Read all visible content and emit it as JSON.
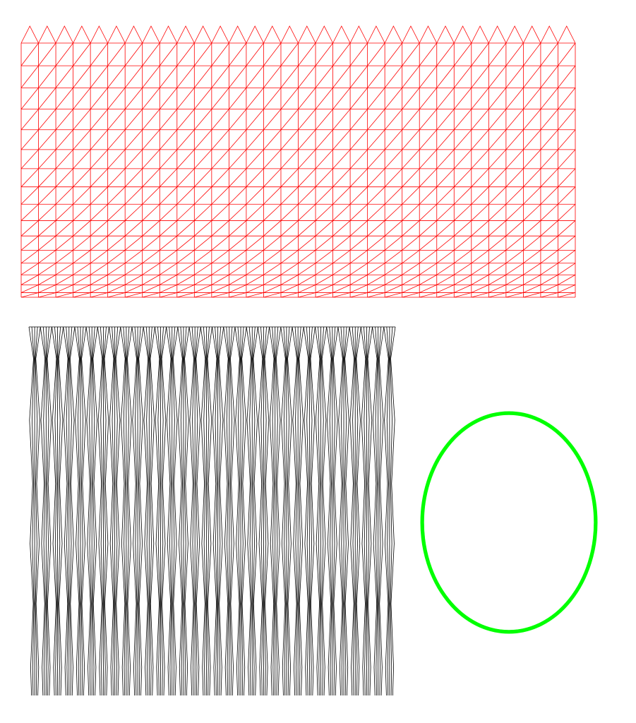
{
  "colors": {
    "background": "#ffffff",
    "mesh": "#ff0000",
    "strands": "#000000",
    "ring": "#00ff00"
  },
  "mesh": {
    "columns": 32,
    "rows": 16
  },
  "strands": {
    "count": 32
  },
  "ring": {
    "shape": "ellipse"
  }
}
